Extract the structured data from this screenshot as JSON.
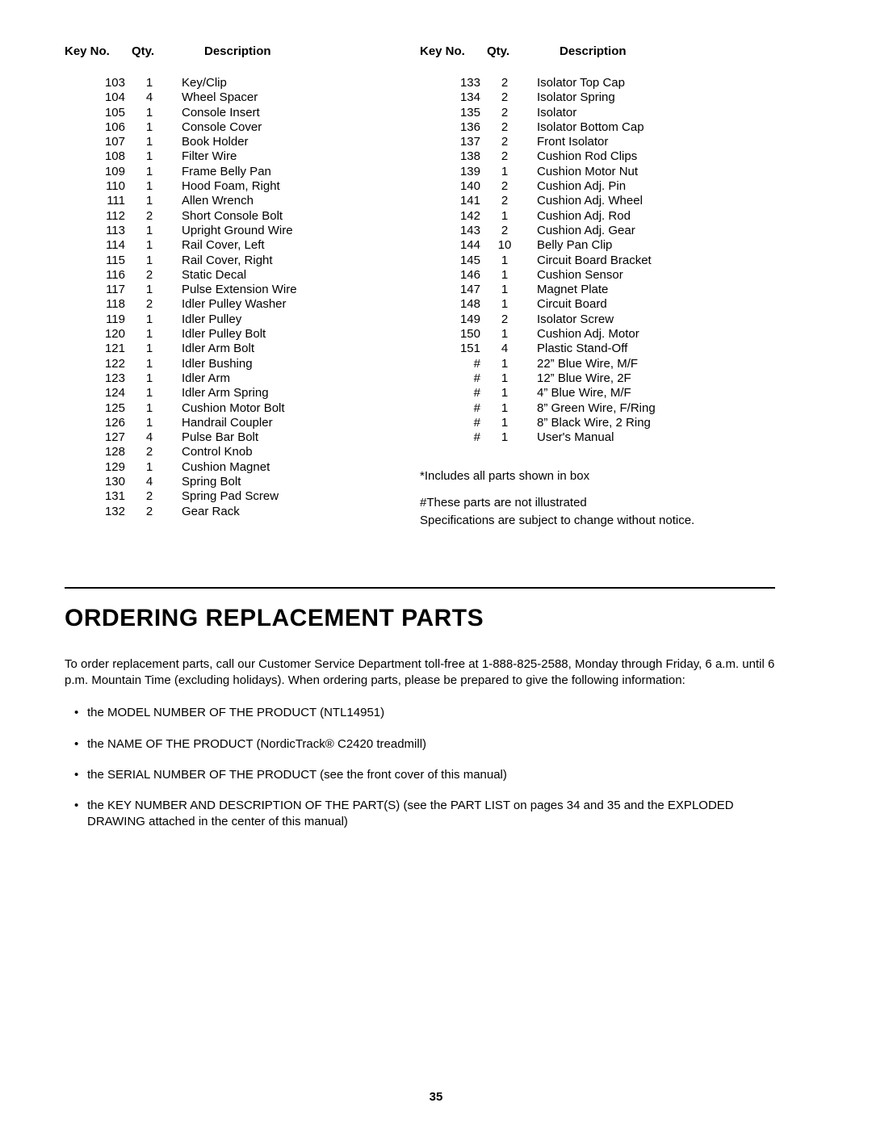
{
  "columns": {
    "header": {
      "key": "Key No.",
      "qty": "Qty.",
      "desc": "Description"
    }
  },
  "left_rows": [
    {
      "key": "103",
      "qty": "1",
      "desc": "Key/Clip"
    },
    {
      "key": "104",
      "qty": "4",
      "desc": "Wheel Spacer"
    },
    {
      "key": "105",
      "qty": "1",
      "desc": "Console Insert"
    },
    {
      "key": "106",
      "qty": "1",
      "desc": "Console Cover"
    },
    {
      "key": "107",
      "qty": "1",
      "desc": "Book Holder"
    },
    {
      "key": "108",
      "qty": "1",
      "desc": "Filter Wire"
    },
    {
      "key": "109",
      "qty": "1",
      "desc": "Frame Belly Pan"
    },
    {
      "key": "110",
      "qty": "1",
      "desc": "Hood Foam, Right"
    },
    {
      "key": "111",
      "qty": "1",
      "desc": "Allen Wrench"
    },
    {
      "key": "112",
      "qty": "2",
      "desc": "Short Console Bolt"
    },
    {
      "key": "113",
      "qty": "1",
      "desc": "Upright Ground Wire"
    },
    {
      "key": "114",
      "qty": "1",
      "desc": "Rail Cover, Left"
    },
    {
      "key": "115",
      "qty": "1",
      "desc": "Rail Cover, Right"
    },
    {
      "key": "116",
      "qty": "2",
      "desc": "Static Decal"
    },
    {
      "key": "117",
      "qty": "1",
      "desc": "Pulse Extension Wire"
    },
    {
      "key": "118",
      "qty": "2",
      "desc": "Idler Pulley Washer"
    },
    {
      "key": "119",
      "qty": "1",
      "desc": "Idler Pulley"
    },
    {
      "key": "120",
      "qty": "1",
      "desc": "Idler Pulley Bolt"
    },
    {
      "key": "121",
      "qty": "1",
      "desc": "Idler Arm Bolt"
    },
    {
      "key": "122",
      "qty": "1",
      "desc": "Idler Bushing"
    },
    {
      "key": "123",
      "qty": "1",
      "desc": "Idler Arm"
    },
    {
      "key": "124",
      "qty": "1",
      "desc": "Idler Arm Spring"
    },
    {
      "key": "125",
      "qty": "1",
      "desc": "Cushion Motor Bolt"
    },
    {
      "key": "126",
      "qty": "1",
      "desc": "Handrail Coupler"
    },
    {
      "key": "127",
      "qty": "4",
      "desc": "Pulse Bar Bolt"
    },
    {
      "key": "128",
      "qty": "2",
      "desc": "Control Knob"
    },
    {
      "key": "129",
      "qty": "1",
      "desc": "Cushion Magnet"
    },
    {
      "key": "130",
      "qty": "4",
      "desc": "Spring Bolt"
    },
    {
      "key": "131",
      "qty": "2",
      "desc": "Spring Pad Screw"
    },
    {
      "key": "132",
      "qty": "2",
      "desc": "Gear Rack"
    }
  ],
  "right_rows": [
    {
      "key": "133",
      "qty": "2",
      "desc": "Isolator Top Cap"
    },
    {
      "key": "134",
      "qty": "2",
      "desc": "Isolator Spring"
    },
    {
      "key": "135",
      "qty": "2",
      "desc": "Isolator"
    },
    {
      "key": "136",
      "qty": "2",
      "desc": "Isolator Bottom Cap"
    },
    {
      "key": "137",
      "qty": "2",
      "desc": "Front Isolator"
    },
    {
      "key": "138",
      "qty": "2",
      "desc": "Cushion Rod Clips"
    },
    {
      "key": "139",
      "qty": "1",
      "desc": "Cushion Motor Nut"
    },
    {
      "key": "140",
      "qty": "2",
      "desc": "Cushion Adj. Pin"
    },
    {
      "key": "141",
      "qty": "2",
      "desc": "Cushion Adj. Wheel"
    },
    {
      "key": "142",
      "qty": "1",
      "desc": "Cushion Adj. Rod"
    },
    {
      "key": "143",
      "qty": "2",
      "desc": "Cushion Adj. Gear"
    },
    {
      "key": "144",
      "qty": "10",
      "desc": "Belly Pan Clip"
    },
    {
      "key": "145",
      "qty": "1",
      "desc": "Circuit Board Bracket"
    },
    {
      "key": "146",
      "qty": "1",
      "desc": "Cushion Sensor"
    },
    {
      "key": "147",
      "qty": "1",
      "desc": "Magnet Plate"
    },
    {
      "key": "148",
      "qty": "1",
      "desc": "Circuit Board"
    },
    {
      "key": "149",
      "qty": "2",
      "desc": "Isolator Screw"
    },
    {
      "key": "150",
      "qty": "1",
      "desc": "Cushion Adj. Motor"
    },
    {
      "key": "151",
      "qty": "4",
      "desc": "Plastic Stand-Off"
    },
    {
      "key": "#",
      "qty": "1",
      "desc": "22” Blue Wire, M/F"
    },
    {
      "key": "#",
      "qty": "1",
      "desc": "12” Blue Wire, 2F"
    },
    {
      "key": "#",
      "qty": "1",
      "desc": "4” Blue Wire, M/F"
    },
    {
      "key": "#",
      "qty": "1",
      "desc": "8” Green Wire, F/Ring"
    },
    {
      "key": "#",
      "qty": "1",
      "desc": "8” Black Wire, 2 Ring"
    },
    {
      "key": "#",
      "qty": "1",
      "desc": "User's Manual"
    }
  ],
  "notes": [
    "*Includes all parts shown in box",
    "#These parts are not illustrated",
    "Specifications are subject to change without notice."
  ],
  "section_title": "ORDERING REPLACEMENT PARTS",
  "body_text": "To order replacement parts, call our Customer Service Department toll-free at 1-888-825-2588, Monday through Friday, 6 a.m. until 6 p.m. Mountain Time (excluding holidays). When ordering parts, please be prepared to give the following information:",
  "bullets": [
    "the MODEL NUMBER OF THE PRODUCT (NTL14951)",
    "the NAME OF THE PRODUCT (NordicTrack® C2420 treadmill)",
    "the SERIAL NUMBER OF THE PRODUCT (see the front cover of this manual)",
    "the KEY NUMBER AND DESCRIPTION OF THE PART(S) (see the PART LIST on pages 34 and 35 and the EXPLODED DRAWING attached in the center of this manual)"
  ],
  "page_number": "35"
}
